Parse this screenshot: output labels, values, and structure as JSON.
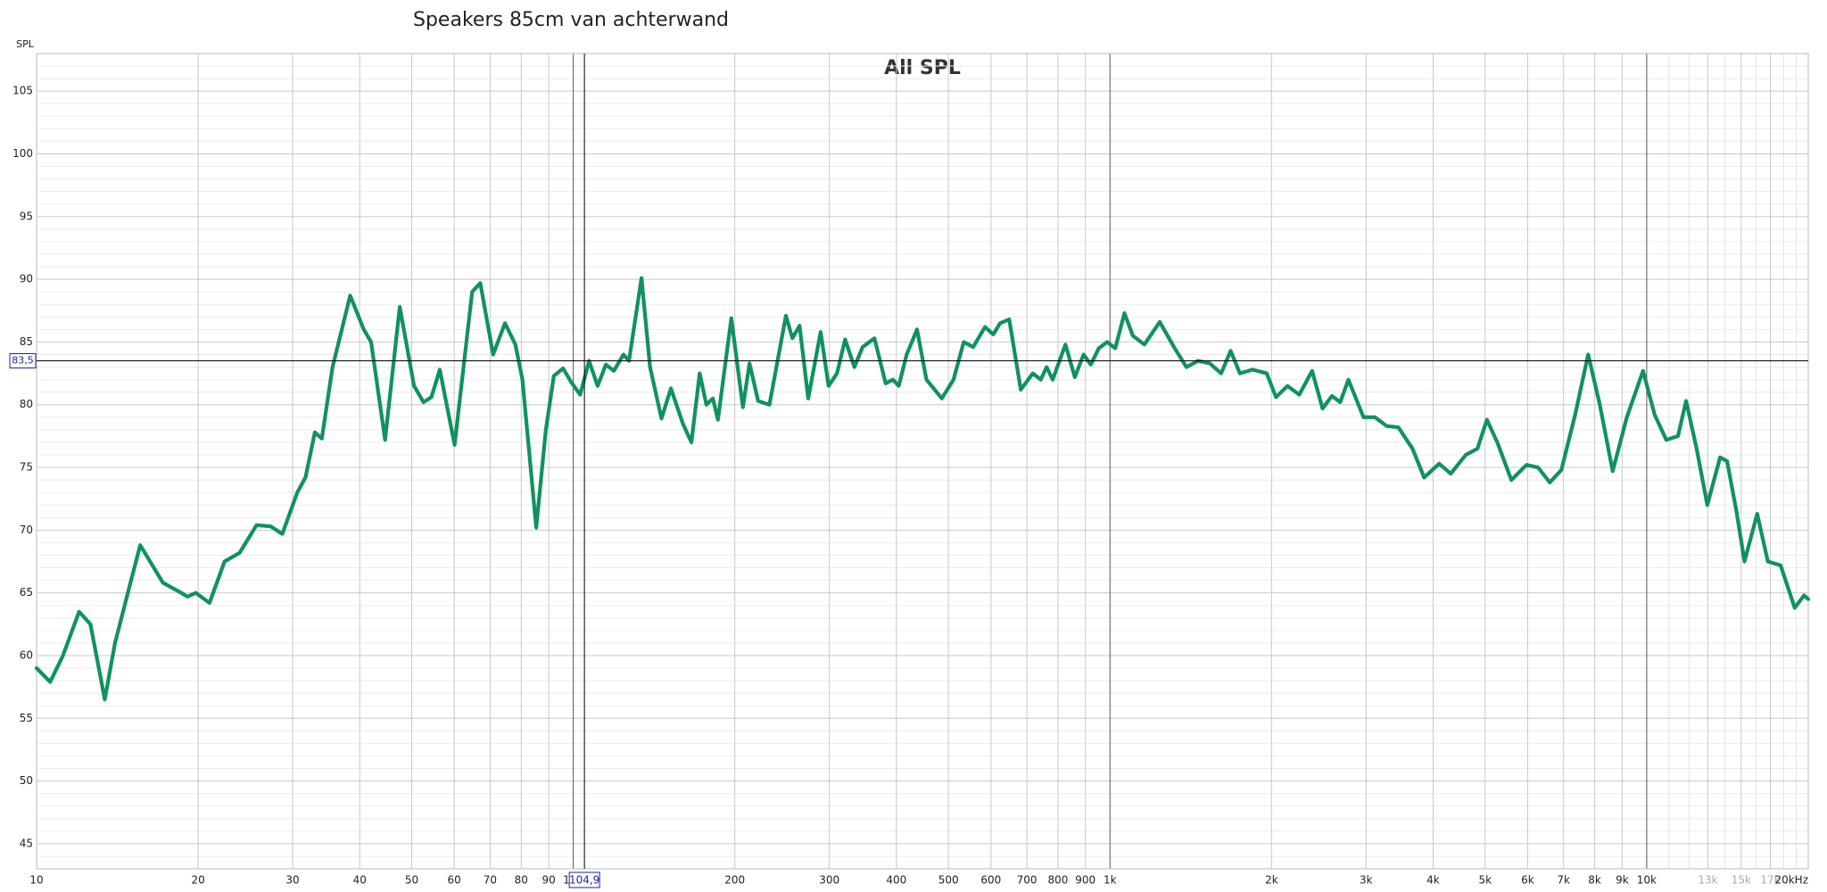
{
  "chart_data": {
    "type": "line",
    "title": "Speakers 85cm van achterwand",
    "subtitle": "All SPL",
    "y_label": "SPL",
    "log_x": true,
    "grid": true,
    "xlim": [
      10,
      20000
    ],
    "ylim": [
      43,
      108
    ],
    "xticks": [
      10,
      20,
      30,
      40,
      50,
      60,
      70,
      80,
      90,
      100,
      200,
      300,
      400,
      500,
      600,
      700,
      800,
      900,
      {
        "value": 1000,
        "label": "1k"
      },
      {
        "value": 2000,
        "label": "2k"
      },
      {
        "value": 3000,
        "label": "3k"
      },
      {
        "value": 4000,
        "label": "4k"
      },
      {
        "value": 5000,
        "label": "5k"
      },
      {
        "value": 6000,
        "label": "6k"
      },
      {
        "value": 7000,
        "label": "7k"
      },
      {
        "value": 8000,
        "label": "8k"
      },
      {
        "value": 9000,
        "label": "9k"
      },
      {
        "value": 10000,
        "label": "10k"
      },
      {
        "value": 13000,
        "label": "13k",
        "faint": true
      },
      {
        "value": 15000,
        "label": "15k",
        "faint": true
      },
      {
        "value": 17000,
        "label": "17k",
        "faint": true
      },
      {
        "value": 20000,
        "label": "20kHz"
      }
    ],
    "xminor": [
      11000,
      12000,
      14000,
      16000,
      18000,
      19000
    ],
    "yticks": [
      45,
      50,
      55,
      60,
      65,
      70,
      75,
      80,
      85,
      90,
      95,
      100,
      105
    ],
    "yminor": [
      44,
      46,
      47,
      48,
      49,
      51,
      52,
      53,
      54,
      56,
      57,
      58,
      59,
      61,
      62,
      63,
      64,
      66,
      67,
      68,
      69,
      71,
      72,
      73,
      74,
      76,
      77,
      78,
      79,
      81,
      82,
      83,
      84,
      86,
      87,
      88,
      89,
      91,
      92,
      93,
      94,
      96,
      97,
      98,
      99,
      101,
      102,
      103,
      104,
      106,
      107
    ],
    "cursor": {
      "x": {
        "value": 104.9,
        "label": "104,9"
      },
      "y": {
        "value": 83.5,
        "label": "83,5"
      }
    },
    "series": [
      {
        "name": "All SPL",
        "color": "#10925f",
        "x": [
          10,
          10.6,
          11.2,
          12,
          12.6,
          13.4,
          14,
          15,
          15.6,
          17.2,
          18.6,
          19.1,
          19.8,
          21,
          22.4,
          23.9,
          25.7,
          27.3,
          28.7,
          30.6,
          31.7,
          33,
          34,
          35.6,
          38.4,
          40.7,
          42,
          44.6,
          47.5,
          50.5,
          52.6,
          54.4,
          56.4,
          60.1,
          64.8,
          67.1,
          70.9,
          74.6,
          78,
          80.4,
          85.3,
          88.9,
          92,
          95.7,
          99.1,
          103,
          107,
          111,
          115,
          119,
          124,
          127,
          134,
          139,
          146,
          152,
          160,
          166,
          172,
          177,
          182,
          186,
          197,
          207,
          213,
          221,
          232,
          249,
          256,
          264,
          274,
          289,
          299,
          310,
          321,
          334,
          346,
          364,
          382,
          394,
          404,
          418,
          437,
          455,
          486,
          511,
          534,
          556,
          585,
          606,
          624,
          649,
          682,
          718,
          743,
          762,
          782,
          826,
          860,
          893,
          921,
          953,
          988,
          1023,
          1064,
          1103,
          1159,
          1238,
          1320,
          1388,
          1459,
          1534,
          1611,
          1678,
          1746,
          1844,
          1959,
          2038,
          2142,
          2252,
          2380,
          2489,
          2592,
          2685,
          2781,
          2967,
          3118,
          3278,
          3446,
          3661,
          3849,
          4105,
          4314,
          4602,
          4838,
          5038,
          5268,
          5595,
          5969,
          6275,
          6597,
          6935,
          7365,
          7779,
          8178,
          8642,
          9183,
          9843,
          10347,
          10878,
          11436,
          11842,
          12388,
          12971,
          13699,
          14117,
          14697,
          15213,
          16065,
          16818,
          17760,
          18870,
          19640,
          20000
        ],
        "values": [
          59,
          57.9,
          60,
          63.5,
          62.5,
          56.5,
          61,
          66,
          68.8,
          65.8,
          65,
          64.7,
          65,
          64.2,
          67.5,
          68.2,
          70.4,
          70.3,
          69.7,
          73,
          74.2,
          77.8,
          77.3,
          83,
          88.7,
          86,
          85,
          77.2,
          87.8,
          81.5,
          80.2,
          80.6,
          82.8,
          76.8,
          89,
          89.7,
          84,
          86.5,
          84.8,
          82,
          70.2,
          78,
          82.3,
          82.9,
          81.8,
          80.8,
          83.5,
          81.5,
          83.2,
          82.7,
          84,
          83.5,
          90.1,
          83,
          78.9,
          81.3,
          78.5,
          77,
          82.5,
          80,
          80.5,
          78.8,
          86.9,
          79.8,
          83.3,
          80.3,
          80,
          87.1,
          85.3,
          86.3,
          80.5,
          85.8,
          81.5,
          82.5,
          85.2,
          83,
          84.6,
          85.3,
          81.7,
          82,
          81.5,
          84,
          86,
          82,
          80.5,
          82,
          85,
          84.6,
          86.2,
          85.6,
          86.5,
          86.8,
          81.2,
          82.5,
          82,
          83,
          82,
          84.8,
          82.2,
          84,
          83.2,
          84.5,
          85,
          84.5,
          87.3,
          85.5,
          84.8,
          86.6,
          84.5,
          83,
          83.5,
          83.3,
          82.5,
          84.3,
          82.5,
          82.8,
          82.5,
          80.6,
          81.5,
          80.8,
          82.7,
          79.7,
          80.7,
          80.2,
          82,
          79,
          79,
          78.3,
          78.2,
          76.5,
          74.2,
          75.3,
          74.5,
          76,
          76.5,
          78.8,
          77,
          74,
          75.2,
          75,
          73.8,
          74.8,
          79.3,
          84,
          80,
          74.7,
          79,
          82.7,
          79.2,
          77.2,
          77.5,
          80.3,
          76.5,
          72,
          75.8,
          75.5,
          71.5,
          67.5,
          71.3,
          67.5,
          67.2,
          63.8,
          64.8,
          64.5
        ]
      }
    ]
  }
}
